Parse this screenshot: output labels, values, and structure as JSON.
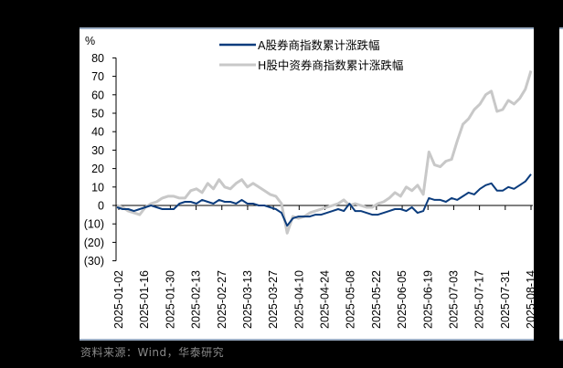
{
  "chart_data": {
    "type": "line",
    "title": "",
    "ylabel": "%",
    "xlabel": "",
    "ylim": [
      -30,
      80
    ],
    "yticks": [
      80,
      70,
      60,
      50,
      40,
      30,
      20,
      10,
      0,
      -10,
      -20,
      -30
    ],
    "ytick_labels": [
      "80",
      "70",
      "60",
      "50",
      "40",
      "30",
      "20",
      "10",
      "0",
      "(10)",
      "(20)",
      "(30)"
    ],
    "grid": false,
    "legend_position": "top-center",
    "x_tick_labels": [
      "2025-01-02",
      "2025-01-16",
      "2025-01-30",
      "2025-02-13",
      "2025-02-27",
      "2025-03-13",
      "2025-03-27",
      "2025-04-10",
      "2025-04-24",
      "2025-05-08",
      "2025-05-22",
      "2025-06-05",
      "2025-06-19",
      "2025-07-03",
      "2025-07-17",
      "2025-07-31",
      "2025-08-14"
    ],
    "series": [
      {
        "name": "A股券商指数累计涨跌幅",
        "color": "#0b3c7d",
        "values": [
          -1,
          -2,
          -2,
          -3,
          -2,
          -1,
          0,
          -1,
          -2,
          -2,
          -2,
          1,
          2,
          2,
          1,
          3,
          2,
          1,
          3,
          2,
          2,
          1,
          3,
          1,
          1,
          0,
          0,
          -1,
          -2,
          -4,
          -11,
          -7,
          -6,
          -6,
          -6,
          -5,
          -5,
          -4,
          -3,
          -2,
          -3,
          1,
          -3,
          -3,
          -4,
          -5,
          -5,
          -4,
          -3,
          -2,
          -2,
          -3,
          -1,
          -4,
          -3,
          4,
          3,
          3,
          2,
          4,
          3,
          5,
          7,
          6,
          9,
          11,
          12,
          8,
          8,
          10,
          9,
          11,
          13,
          17
        ]
      },
      {
        "name": "H股中资券商指数累计涨跌幅",
        "color": "#c8c8c8",
        "values": [
          0,
          -1,
          -3,
          -4,
          -5,
          -1,
          1,
          2,
          4,
          5,
          5,
          4,
          4,
          8,
          9,
          7,
          12,
          9,
          14,
          10,
          9,
          12,
          14,
          10,
          12,
          10,
          8,
          6,
          5,
          1,
          -15,
          -6,
          -7,
          -6,
          -4,
          -3,
          -2,
          -1,
          0,
          1,
          3,
          0,
          1,
          0,
          -1,
          -1,
          1,
          2,
          4,
          7,
          5,
          10,
          8,
          11,
          6,
          29,
          22,
          21,
          24,
          25,
          35,
          44,
          47,
          52,
          55,
          60,
          62,
          51,
          52,
          57,
          55,
          58,
          63,
          73
        ]
      }
    ]
  },
  "legend": {
    "a_label": "A股券商指数累计涨跌幅",
    "h_label": "H股中资券商指数累计涨跌幅"
  },
  "axis": {
    "y_unit": "%"
  },
  "source": "资料来源：Wind，华泰研究"
}
